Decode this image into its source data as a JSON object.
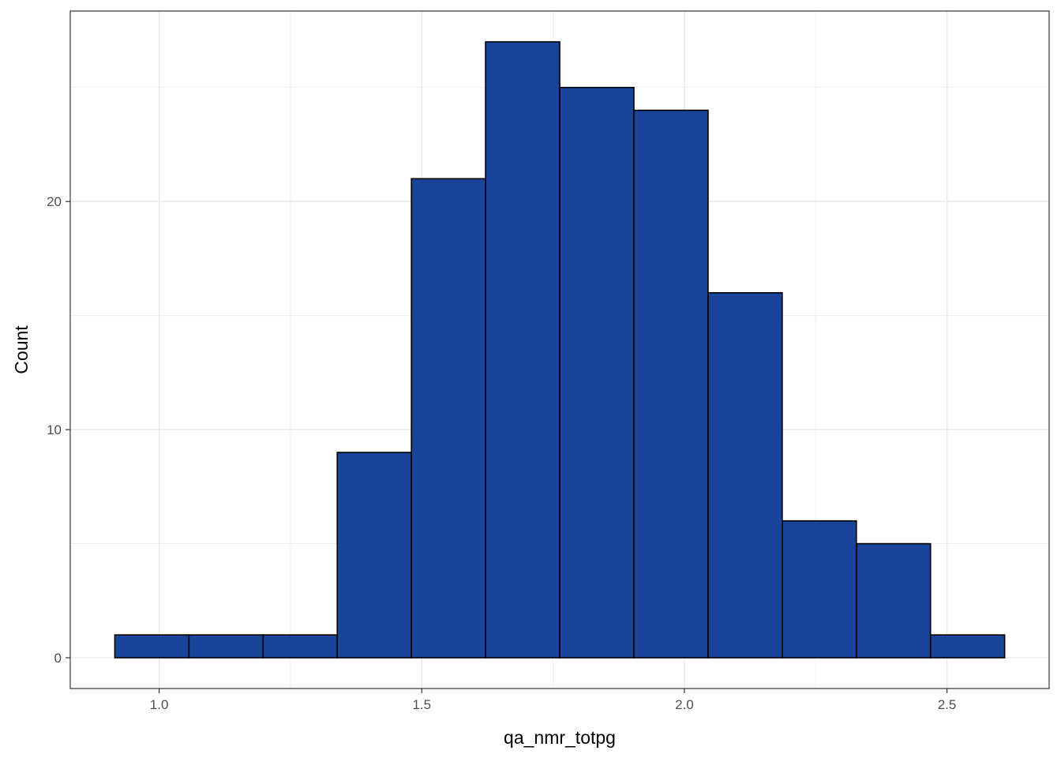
{
  "chart_data": {
    "type": "bar",
    "subtype": "histogram",
    "xlabel": "qa_nmr_totpg",
    "ylabel": "Count",
    "bin_width": 0.1412,
    "bins": [
      {
        "start": 0.9155,
        "end": 1.0567,
        "count": 1
      },
      {
        "start": 1.0567,
        "end": 1.1979,
        "count": 1
      },
      {
        "start": 1.1979,
        "end": 1.3391,
        "count": 1
      },
      {
        "start": 1.3391,
        "end": 1.4803,
        "count": 9
      },
      {
        "start": 1.4803,
        "end": 1.6215,
        "count": 21
      },
      {
        "start": 1.6215,
        "end": 1.7627,
        "count": 27
      },
      {
        "start": 1.7627,
        "end": 1.9039,
        "count": 25
      },
      {
        "start": 1.9039,
        "end": 2.0451,
        "count": 24
      },
      {
        "start": 2.0451,
        "end": 2.1863,
        "count": 16
      },
      {
        "start": 2.1863,
        "end": 2.3275,
        "count": 6
      },
      {
        "start": 2.3275,
        "end": 2.4687,
        "count": 5
      },
      {
        "start": 2.4687,
        "end": 2.6099,
        "count": 1
      }
    ],
    "xlim": [
      0.8307,
      2.6946
    ],
    "ylim": [
      -1.35,
      28.35
    ],
    "x_ticks": [
      1.0,
      1.5,
      2.0,
      2.5
    ],
    "x_tick_labels": [
      "1.0",
      "1.5",
      "2.0",
      "2.5"
    ],
    "y_ticks": [
      0,
      10,
      20
    ],
    "y_tick_labels": [
      "0",
      "10",
      "20"
    ],
    "x_minor_ticks": [
      1.25,
      1.75,
      2.25
    ],
    "y_minor_ticks": [
      5,
      15,
      25
    ],
    "grid": true,
    "bar_fill": "#184499",
    "bar_stroke": "#000000",
    "panel_border": "#333333",
    "grid_color": "#ebebeb"
  }
}
